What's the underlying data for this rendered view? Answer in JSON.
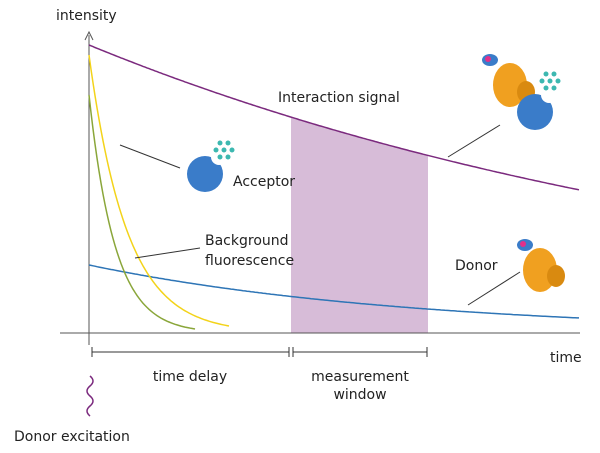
{
  "axes": {
    "y_label": "intensity",
    "x_label": "time"
  },
  "curves": {
    "interaction": "Interaction signal",
    "acceptor": "Acceptor",
    "background": [
      "Background",
      "fluorescence"
    ],
    "donor": "Donor"
  },
  "intervals": {
    "delay": "time delay",
    "window": [
      "measurement",
      "window"
    ]
  },
  "excitation": "Donor excitation"
}
